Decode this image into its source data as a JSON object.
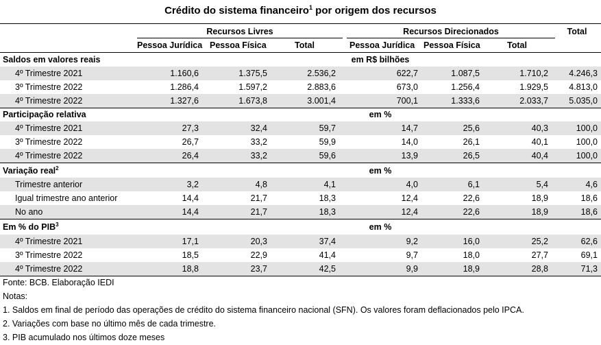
{
  "title": "Crédito do sistema financeiro",
  "title_note": "1",
  "title_suffix": "por origem dos recursos",
  "header": {
    "group_livres": "Recursos Livres",
    "group_direcionados": "Recursos Direcionados",
    "total": "Total",
    "pj": "Pessoa Jurídica",
    "pf": "Pessoa Física",
    "subtotal": "Total"
  },
  "sections": [
    {
      "label": "Saldos em valores reais",
      "note": "",
      "unit": "em R$ bilhões",
      "rows": [
        {
          "label": "4º Trimestre 2021",
          "values": [
            "1.160,6",
            "1.375,5",
            "2.536,2",
            "622,7",
            "1.087,5",
            "1.710,2",
            "4.246,3"
          ]
        },
        {
          "label": "3º Trimestre 2022",
          "values": [
            "1.286,4",
            "1.597,2",
            "2.883,6",
            "673,0",
            "1.256,4",
            "1.929,5",
            "4.813,0"
          ]
        },
        {
          "label": "4º Trimestre 2022",
          "values": [
            "1.327,6",
            "1.673,8",
            "3.001,4",
            "700,1",
            "1.333,6",
            "2.033,7",
            "5.035,0"
          ]
        }
      ]
    },
    {
      "label": "Participação relativa",
      "note": "",
      "unit": "em %",
      "rows": [
        {
          "label": "4º Trimestre 2021",
          "values": [
            "27,3",
            "32,4",
            "59,7",
            "14,7",
            "25,6",
            "40,3",
            "100,0"
          ]
        },
        {
          "label": "3º Trimestre 2022",
          "values": [
            "26,7",
            "33,2",
            "59,9",
            "14,0",
            "26,1",
            "40,1",
            "100,0"
          ]
        },
        {
          "label": "4º Trimestre 2022",
          "values": [
            "26,4",
            "33,2",
            "59,6",
            "13,9",
            "26,5",
            "40,4",
            "100,0"
          ]
        }
      ]
    },
    {
      "label": "Variação real",
      "note": "2",
      "unit": "em %",
      "rows": [
        {
          "label": "Trimestre anterior",
          "values": [
            "3,2",
            "4,8",
            "4,1",
            "4,0",
            "6,1",
            "5,4",
            "4,6"
          ]
        },
        {
          "label": "Igual trimestre ano anterior",
          "values": [
            "14,4",
            "21,7",
            "18,3",
            "12,4",
            "22,6",
            "18,9",
            "18,6"
          ]
        },
        {
          "label": "No ano",
          "values": [
            "14,4",
            "21,7",
            "18,3",
            "12,4",
            "22,6",
            "18,9",
            "18,6"
          ]
        }
      ]
    },
    {
      "label": "Em % do PIB",
      "note": "3",
      "unit": "em %",
      "rows": [
        {
          "label": "4º Trimestre 2021",
          "values": [
            "17,1",
            "20,3",
            "37,4",
            "9,2",
            "16,0",
            "25,2",
            "62,6"
          ]
        },
        {
          "label": "3º Trimestre 2022",
          "values": [
            "18,5",
            "22,9",
            "41,4",
            "9,7",
            "18,0",
            "27,7",
            "69,1"
          ]
        },
        {
          "label": "4º Trimestre 2022",
          "values": [
            "18,8",
            "23,7",
            "42,5",
            "9,9",
            "18,9",
            "28,8",
            "71,3"
          ]
        }
      ]
    }
  ],
  "footer": [
    "Fonte: BCB. Elaboração IEDI",
    "Notas:",
    "1. Saldos em final de período das operações de crédito do sistema financeiro nacional (SFN). Os valores foram deflacionados pelo IPCA.",
    "2.  Variações com base no último mês de cada trimestre.",
    "3. PIB acumulado nos últimos doze meses"
  ]
}
